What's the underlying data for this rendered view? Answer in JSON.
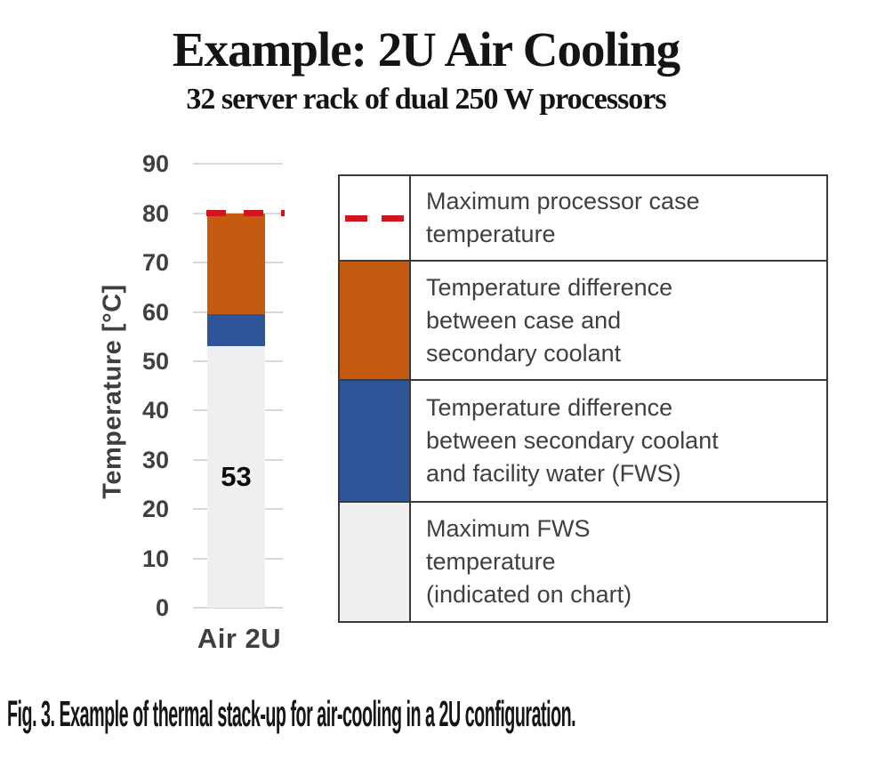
{
  "header": {
    "title": "Example: 2U Air Cooling",
    "subtitle": "32 server rack of dual 250 W processors"
  },
  "caption": "Fig. 3. Example of thermal stack-up for air-cooling in a 2U configuration.",
  "colors": {
    "orange": "#C55A11",
    "blue": "#2E5597",
    "red": "#D2141E",
    "bar_gray": "#EFEFEF",
    "gridline": "#D9D9D9",
    "axis_text": "#404040",
    "table_border": "#3A3A3A"
  },
  "chart_data": {
    "type": "bar",
    "subtype": "stacked",
    "title": "Example: 2U Air Cooling",
    "subtitle": "32 server rack of dual 250 W processors",
    "xlabel": "",
    "ylabel": "Temperature [°C]",
    "ylim": [
      0,
      90
    ],
    "yticks": [
      0,
      10,
      20,
      30,
      40,
      50,
      60,
      70,
      80,
      90
    ],
    "grid": true,
    "legend_position": "right-table",
    "categories": [
      "Air 2U"
    ],
    "series": [
      {
        "name": "Maximum FWS temperature (indicated on chart)",
        "values": [
          53
        ],
        "color": "#EFEFEF",
        "data_label": "53"
      },
      {
        "name": "Temperature difference between secondary coolant and facility water (FWS)",
        "values": [
          6.5
        ],
        "color": "#2E5597"
      },
      {
        "name": "Temperature difference between case and secondary coolant",
        "values": [
          20.5
        ],
        "color": "#C55A11"
      }
    ],
    "reference_line": {
      "name": "Maximum processor case temperature",
      "value": 80,
      "style": "dashed",
      "color": "#D2141E"
    }
  },
  "legend": {
    "rows": [
      {
        "swatch": "red-dashed-line",
        "color": "#D2141E",
        "text": "Maximum processor case\ntemperature"
      },
      {
        "swatch": "orange-fill",
        "color": "#C55A11",
        "text": "Temperature difference\nbetween case and\nsecondary coolant"
      },
      {
        "swatch": "blue-fill",
        "color": "#2E5597",
        "text": "Temperature difference\nbetween secondary coolant\nand facility water (FWS)"
      },
      {
        "swatch": "gray-fill",
        "color": "#EFEFEF",
        "text": "Maximum FWS\ntemperature\n(indicated on chart)"
      }
    ]
  }
}
